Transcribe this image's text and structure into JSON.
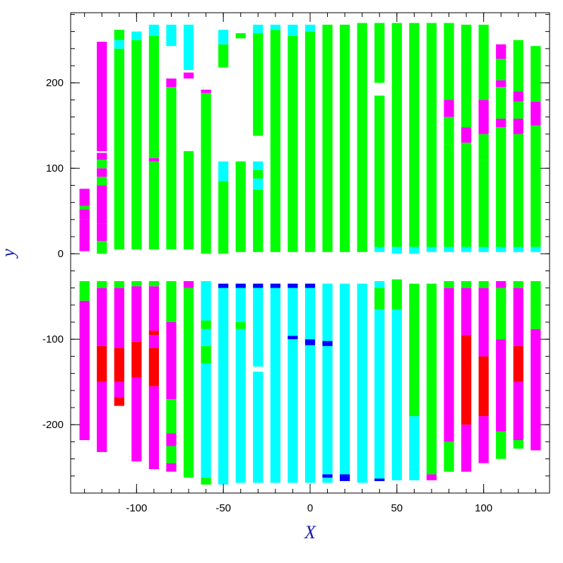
{
  "chart_data": {
    "type": "bar",
    "xlabel": "X",
    "ylabel": "y",
    "xlim": [
      -138,
      138
    ],
    "ylim": [
      -280,
      282
    ],
    "xticks_major": [
      -100,
      -50,
      0,
      50,
      100
    ],
    "xticks_major_labels": [
      "-100",
      "-50",
      "0",
      "50",
      "100"
    ],
    "yticks_major": [
      -200,
      -100,
      0,
      100,
      200
    ],
    "yticks_major_labels": [
      "-200",
      "-100",
      "0",
      "100",
      "200"
    ],
    "xtick_minor_step": 10,
    "ytick_minor_step": 20,
    "grid": false,
    "colors": {
      "G": "#00ff00",
      "C": "#00ffff",
      "M": "#ff00ff",
      "R": "#ff0000",
      "B": "#0000ff",
      "axis_title": "#1a1aaa",
      "frame": "#000000"
    },
    "columns": [
      {
        "x": -130,
        "upper": [
          [
            3,
            40,
            "M"
          ],
          [
            40,
            52,
            "M"
          ],
          [
            52,
            56,
            "G"
          ],
          [
            56,
            76,
            "M"
          ]
        ],
        "lower": [
          [
            -218,
            -55,
            "M"
          ],
          [
            -55,
            -32,
            "G"
          ]
        ]
      },
      {
        "x": -120,
        "upper": [
          [
            0,
            15,
            "G"
          ],
          [
            15,
            35,
            "M"
          ],
          [
            35,
            80,
            "M"
          ],
          [
            80,
            90,
            "G"
          ],
          [
            90,
            100,
            "M"
          ],
          [
            100,
            110,
            "G"
          ],
          [
            110,
            118,
            "M"
          ],
          [
            120,
            248,
            "M"
          ]
        ],
        "lower": [
          [
            -232,
            -150,
            "M"
          ],
          [
            -150,
            -108,
            "R"
          ],
          [
            -108,
            -40,
            "M"
          ],
          [
            -40,
            -32,
            "G"
          ]
        ]
      },
      {
        "x": -110,
        "upper": [
          [
            5,
            240,
            "G"
          ],
          [
            240,
            250,
            "C"
          ],
          [
            250,
            262,
            "G"
          ]
        ],
        "lower": [
          [
            -178,
            -168,
            "R"
          ],
          [
            -168,
            -150,
            "M"
          ],
          [
            -150,
            -110,
            "R"
          ],
          [
            -110,
            -40,
            "M"
          ],
          [
            -40,
            -32,
            "G"
          ]
        ]
      },
      {
        "x": -100,
        "upper": [
          [
            5,
            250,
            "G"
          ],
          [
            250,
            260,
            "C"
          ]
        ],
        "lower": [
          [
            -243,
            -145,
            "M"
          ],
          [
            -145,
            -103,
            "R"
          ],
          [
            -103,
            -38,
            "M"
          ],
          [
            -38,
            -32,
            "G"
          ]
        ]
      },
      {
        "x": -90,
        "upper": [
          [
            5,
            108,
            "G"
          ],
          [
            108,
            112,
            "M"
          ],
          [
            112,
            255,
            "G"
          ],
          [
            255,
            268,
            "C"
          ]
        ],
        "lower": [
          [
            -252,
            -155,
            "M"
          ],
          [
            -155,
            -110,
            "R"
          ],
          [
            -110,
            -95,
            "M"
          ],
          [
            -95,
            -90,
            "R"
          ],
          [
            -90,
            -38,
            "M"
          ],
          [
            -38,
            -32,
            "G"
          ]
        ]
      },
      {
        "x": -80,
        "upper": [
          [
            5,
            195,
            "G"
          ],
          [
            195,
            205,
            "M"
          ],
          [
            243,
            268,
            "C"
          ]
        ],
        "lower": [
          [
            -255,
            -245,
            "M"
          ],
          [
            -245,
            -225,
            "G"
          ],
          [
            -225,
            -210,
            "M"
          ],
          [
            -210,
            -170,
            "G"
          ],
          [
            -170,
            -80,
            "M"
          ],
          [
            -80,
            -32,
            "G"
          ]
        ]
      },
      {
        "x": -70,
        "upper": [
          [
            5,
            120,
            "G"
          ],
          [
            205,
            212,
            "M"
          ],
          [
            215,
            255,
            "C"
          ],
          [
            255,
            268,
            "C"
          ]
        ],
        "lower": [
          [
            -262,
            -40,
            "G"
          ],
          [
            -40,
            -32,
            "M"
          ]
        ]
      },
      {
        "x": -60,
        "upper": [
          [
            0,
            188,
            "G"
          ],
          [
            188,
            192,
            "M"
          ]
        ],
        "lower": [
          [
            -270,
            -262,
            "G"
          ],
          [
            -262,
            -128,
            "C"
          ],
          [
            -128,
            -108,
            "G"
          ],
          [
            -108,
            -88,
            "C"
          ],
          [
            -88,
            -78,
            "G"
          ],
          [
            -78,
            -32,
            "C"
          ]
        ]
      },
      {
        "x": -50,
        "upper": [
          [
            0,
            85,
            "G"
          ],
          [
            85,
            108,
            "C"
          ],
          [
            218,
            245,
            "G"
          ],
          [
            245,
            262,
            "C"
          ]
        ],
        "lower": [
          [
            -270,
            -40,
            "C"
          ],
          [
            -40,
            -35,
            "B"
          ]
        ]
      },
      {
        "x": -40,
        "upper": [
          [
            2,
            108,
            "G"
          ],
          [
            252,
            258,
            "G"
          ]
        ],
        "lower": [
          [
            -268,
            -88,
            "C"
          ],
          [
            -88,
            -80,
            "G"
          ],
          [
            -80,
            -40,
            "C"
          ],
          [
            -40,
            -35,
            "B"
          ]
        ]
      },
      {
        "x": -30,
        "upper": [
          [
            2,
            75,
            "G"
          ],
          [
            75,
            88,
            "C"
          ],
          [
            88,
            98,
            "G"
          ],
          [
            98,
            108,
            "C"
          ],
          [
            138,
            258,
            "G"
          ],
          [
            258,
            268,
            "C"
          ]
        ],
        "lower": [
          [
            -268,
            -138,
            "C"
          ],
          [
            -132,
            -40,
            "C"
          ],
          [
            -40,
            -35,
            "B"
          ]
        ]
      },
      {
        "x": -20,
        "upper": [
          [
            2,
            262,
            "G"
          ],
          [
            262,
            268,
            "C"
          ]
        ],
        "lower": [
          [
            -268,
            -40,
            "C"
          ],
          [
            -40,
            -35,
            "B"
          ]
        ]
      },
      {
        "x": -10,
        "upper": [
          [
            2,
            255,
            "G"
          ],
          [
            255,
            268,
            "C"
          ]
        ],
        "lower": [
          [
            -268,
            -100,
            "C"
          ],
          [
            -100,
            -96,
            "B"
          ],
          [
            -96,
            -40,
            "C"
          ],
          [
            -40,
            -35,
            "B"
          ]
        ]
      },
      {
        "x": 0,
        "upper": [
          [
            2,
            260,
            "G"
          ],
          [
            260,
            268,
            "C"
          ]
        ],
        "lower": [
          [
            -268,
            -107,
            "C"
          ],
          [
            -107,
            -100,
            "B"
          ],
          [
            -100,
            -40,
            "C"
          ],
          [
            -40,
            -35,
            "B"
          ]
        ]
      },
      {
        "x": 10,
        "upper": [
          [
            2,
            268,
            "G"
          ]
        ],
        "lower": [
          [
            -268,
            -262,
            "C"
          ],
          [
            -262,
            -258,
            "B"
          ],
          [
            -258,
            -108,
            "C"
          ],
          [
            -108,
            -102,
            "B"
          ],
          [
            -102,
            -35,
            "C"
          ]
        ]
      },
      {
        "x": 20,
        "upper": [
          [
            2,
            268,
            "G"
          ]
        ],
        "lower": [
          [
            -266,
            -258,
            "B"
          ],
          [
            -258,
            -35,
            "C"
          ]
        ]
      },
      {
        "x": 30,
        "upper": [
          [
            2,
            270,
            "G"
          ]
        ],
        "lower": [
          [
            -268,
            -35,
            "C"
          ]
        ]
      },
      {
        "x": 40,
        "upper": [
          [
            2,
            8,
            "C"
          ],
          [
            8,
            185,
            "G"
          ],
          [
            200,
            270,
            "G"
          ]
        ],
        "lower": [
          [
            -266,
            -263,
            "B"
          ],
          [
            -263,
            -65,
            "C"
          ],
          [
            -65,
            -40,
            "G"
          ],
          [
            -40,
            -32,
            "C"
          ]
        ]
      },
      {
        "x": 50,
        "upper": [
          [
            0,
            8,
            "C"
          ],
          [
            8,
            270,
            "G"
          ]
        ],
        "lower": [
          [
            -265,
            -65,
            "C"
          ],
          [
            -65,
            -30,
            "G"
          ]
        ]
      },
      {
        "x": 60,
        "upper": [
          [
            0,
            8,
            "C"
          ],
          [
            8,
            270,
            "G"
          ]
        ],
        "lower": [
          [
            -265,
            -248,
            "C"
          ],
          [
            -248,
            -232,
            "C"
          ],
          [
            -232,
            -190,
            "C"
          ],
          [
            -190,
            -35,
            "G"
          ]
        ]
      },
      {
        "x": 70,
        "upper": [
          [
            2,
            8,
            "C"
          ],
          [
            8,
            270,
            "G"
          ]
        ],
        "lower": [
          [
            -265,
            -258,
            "M"
          ],
          [
            -258,
            -145,
            "G"
          ],
          [
            -145,
            -35,
            "G"
          ]
        ]
      },
      {
        "x": 80,
        "upper": [
          [
            2,
            8,
            "C"
          ],
          [
            8,
            128,
            "G"
          ],
          [
            128,
            160,
            "G"
          ],
          [
            160,
            180,
            "M"
          ],
          [
            180,
            270,
            "G"
          ]
        ],
        "lower": [
          [
            -255,
            -220,
            "G"
          ],
          [
            -220,
            -40,
            "M"
          ],
          [
            -40,
            -32,
            "G"
          ]
        ]
      },
      {
        "x": 90,
        "upper": [
          [
            2,
            8,
            "C"
          ],
          [
            8,
            130,
            "G"
          ],
          [
            130,
            148,
            "M"
          ],
          [
            148,
            155,
            "G"
          ],
          [
            155,
            230,
            "G"
          ],
          [
            230,
            268,
            "G"
          ]
        ],
        "lower": [
          [
            -255,
            -200,
            "M"
          ],
          [
            -200,
            -95,
            "R"
          ],
          [
            -95,
            -40,
            "M"
          ],
          [
            -40,
            -32,
            "G"
          ]
        ]
      },
      {
        "x": 100,
        "upper": [
          [
            2,
            8,
            "C"
          ],
          [
            8,
            110,
            "G"
          ],
          [
            110,
            140,
            "G"
          ],
          [
            140,
            180,
            "M"
          ],
          [
            180,
            268,
            "G"
          ]
        ],
        "lower": [
          [
            -245,
            -190,
            "M"
          ],
          [
            -190,
            -120,
            "R"
          ],
          [
            -120,
            -40,
            "M"
          ],
          [
            -40,
            -32,
            "G"
          ]
        ]
      },
      {
        "x": 110,
        "upper": [
          [
            2,
            8,
            "C"
          ],
          [
            8,
            148,
            "G"
          ],
          [
            148,
            158,
            "M"
          ],
          [
            158,
            195,
            "G"
          ],
          [
            195,
            203,
            "M"
          ],
          [
            203,
            228,
            "G"
          ],
          [
            228,
            245,
            "M"
          ]
        ],
        "lower": [
          [
            -240,
            -208,
            "G"
          ],
          [
            -208,
            -100,
            "M"
          ],
          [
            -100,
            -40,
            "G"
          ],
          [
            -40,
            -32,
            "M"
          ]
        ]
      },
      {
        "x": 120,
        "upper": [
          [
            2,
            8,
            "C"
          ],
          [
            8,
            140,
            "G"
          ],
          [
            140,
            158,
            "M"
          ],
          [
            158,
            178,
            "G"
          ],
          [
            178,
            190,
            "M"
          ],
          [
            190,
            250,
            "G"
          ]
        ],
        "lower": [
          [
            -228,
            -218,
            "G"
          ],
          [
            -218,
            -150,
            "M"
          ],
          [
            -150,
            -108,
            "R"
          ],
          [
            -108,
            -40,
            "M"
          ],
          [
            -40,
            -32,
            "G"
          ]
        ]
      },
      {
        "x": 130,
        "upper": [
          [
            2,
            8,
            "C"
          ],
          [
            8,
            150,
            "G"
          ],
          [
            150,
            178,
            "M"
          ],
          [
            178,
            243,
            "G"
          ]
        ],
        "lower": [
          [
            -230,
            -88,
            "M"
          ],
          [
            -88,
            -32,
            "G"
          ]
        ]
      }
    ]
  }
}
